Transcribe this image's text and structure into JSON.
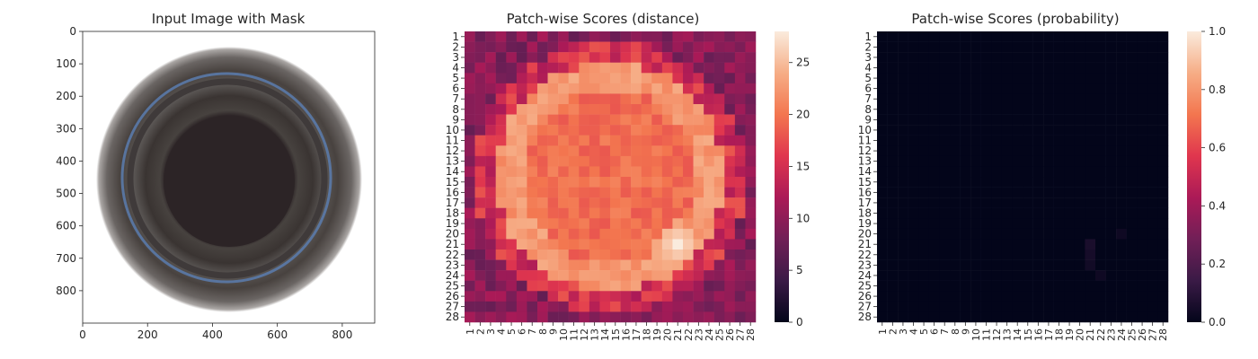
{
  "chart_data": [
    {
      "type": "image",
      "title": "Input Image with Mask",
      "x_ticks": [
        "0",
        "200",
        "400",
        "600",
        "800"
      ],
      "y_ticks": [
        "0",
        "100",
        "200",
        "300",
        "400",
        "500",
        "600",
        "700",
        "800"
      ],
      "xlim": [
        0,
        900
      ],
      "ylim": [
        900,
        0
      ],
      "colors": {
        "background": "#ffffff",
        "outer_ring": "#5a5654",
        "inner_disk": "#2c2426",
        "blue_rim": "#5b7fb5"
      }
    },
    {
      "type": "heatmap",
      "title": "Patch-wise Scores (distance)",
      "rows": [
        "1",
        "2",
        "3",
        "4",
        "5",
        "6",
        "7",
        "8",
        "9",
        "10",
        "11",
        "12",
        "13",
        "14",
        "15",
        "16",
        "17",
        "18",
        "19",
        "20",
        "21",
        "22",
        "23",
        "24",
        "25",
        "26",
        "27",
        "28"
      ],
      "cols": [
        "1",
        "2",
        "3",
        "4",
        "5",
        "6",
        "7",
        "8",
        "9",
        "10",
        "11",
        "12",
        "13",
        "14",
        "15",
        "16",
        "17",
        "18",
        "19",
        "20",
        "21",
        "22",
        "23",
        "24",
        "25",
        "26",
        "27",
        "28"
      ],
      "colorbar_ticks": [
        "0",
        "5",
        "10",
        "15",
        "20",
        "25"
      ],
      "vmin": 0,
      "vmax": 28,
      "colormap": "rocket",
      "colormap_stops": [
        "#03051a",
        "#3a1a46",
        "#711f57",
        "#ab1a57",
        "#e0364e",
        "#f3764f",
        "#f6ad86",
        "#faebdd"
      ],
      "pattern": {
        "rim": 7,
        "center": 19,
        "bright_ring": 23,
        "hotspot_row": 21,
        "hotspot_col": 21,
        "hotspot": 28
      }
    },
    {
      "type": "heatmap",
      "title": "Patch-wise Scores (probability)",
      "rows": [
        "1",
        "2",
        "3",
        "4",
        "5",
        "6",
        "7",
        "8",
        "9",
        "10",
        "11",
        "12",
        "13",
        "14",
        "15",
        "16",
        "17",
        "18",
        "19",
        "20",
        "21",
        "22",
        "23",
        "24",
        "25",
        "26",
        "27",
        "28"
      ],
      "cols": [
        "1",
        "2",
        "3",
        "4",
        "5",
        "6",
        "7",
        "8",
        "9",
        "10",
        "11",
        "12",
        "13",
        "14",
        "15",
        "16",
        "17",
        "18",
        "19",
        "20",
        "21",
        "22",
        "23",
        "24",
        "25",
        "26",
        "27",
        "28"
      ],
      "colorbar_ticks": [
        "0.0",
        "0.2",
        "0.4",
        "0.6",
        "0.8",
        "1.0"
      ],
      "vmin": 0,
      "vmax": 1,
      "colormap": "rocket",
      "background_value": 0.0,
      "highlights": [
        {
          "row": 21,
          "col": 21,
          "value": 0.06
        },
        {
          "row": 22,
          "col": 21,
          "value": 0.05
        },
        {
          "row": 23,
          "col": 21,
          "value": 0.04
        },
        {
          "row": 20,
          "col": 24,
          "value": 0.03
        },
        {
          "row": 24,
          "col": 22,
          "value": 0.03
        }
      ]
    }
  ]
}
